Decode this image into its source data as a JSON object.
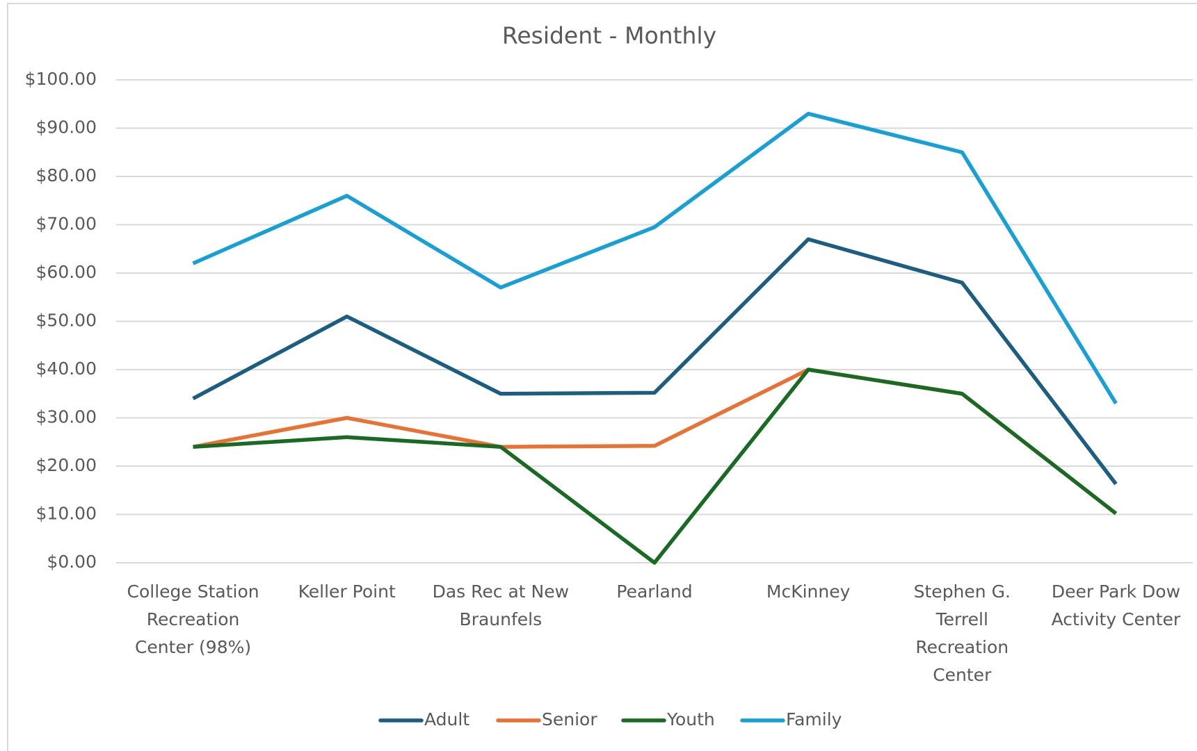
{
  "chart_data": {
    "type": "line",
    "title": "Resident - Monthly",
    "categories": [
      "College Station Recreation Center (98%)",
      "Keller Point",
      "Das Rec at New Braunfels",
      "Pearland",
      "McKinney",
      "Stephen G. Terrell Recreation Center",
      "Deer Park Dow Activity Center"
    ],
    "series": [
      {
        "name": "Adult",
        "color": "#1b5e82",
        "values": [
          34,
          51,
          35,
          35.2,
          67,
          58,
          16.3
        ]
      },
      {
        "name": "Senior",
        "color": "#e97132",
        "values": [
          24,
          30,
          24,
          24.2,
          40,
          35,
          10.2
        ]
      },
      {
        "name": "Youth",
        "color": "#196b24",
        "values": [
          24,
          26,
          24,
          0,
          40,
          35,
          10.2
        ]
      },
      {
        "name": "Family",
        "color": "#17a0d6",
        "values": [
          62,
          76,
          57,
          69.5,
          93,
          85,
          33
        ]
      }
    ],
    "ylim": [
      0,
      100
    ],
    "yticks": [
      {
        "value": 0,
        "label": "$0.00"
      },
      {
        "value": 10,
        "label": "$10.00"
      },
      {
        "value": 20,
        "label": "$20.00"
      },
      {
        "value": 30,
        "label": "$30.00"
      },
      {
        "value": 40,
        "label": "$40.00"
      },
      {
        "value": 50,
        "label": "$50.00"
      },
      {
        "value": 60,
        "label": "$60.00"
      },
      {
        "value": 70,
        "label": "$70.00"
      },
      {
        "value": 80,
        "label": "$80.00"
      },
      {
        "value": 90,
        "label": "$90.00"
      },
      {
        "value": 100,
        "label": "$100.00"
      }
    ],
    "grid": true,
    "legend": "bottom"
  }
}
